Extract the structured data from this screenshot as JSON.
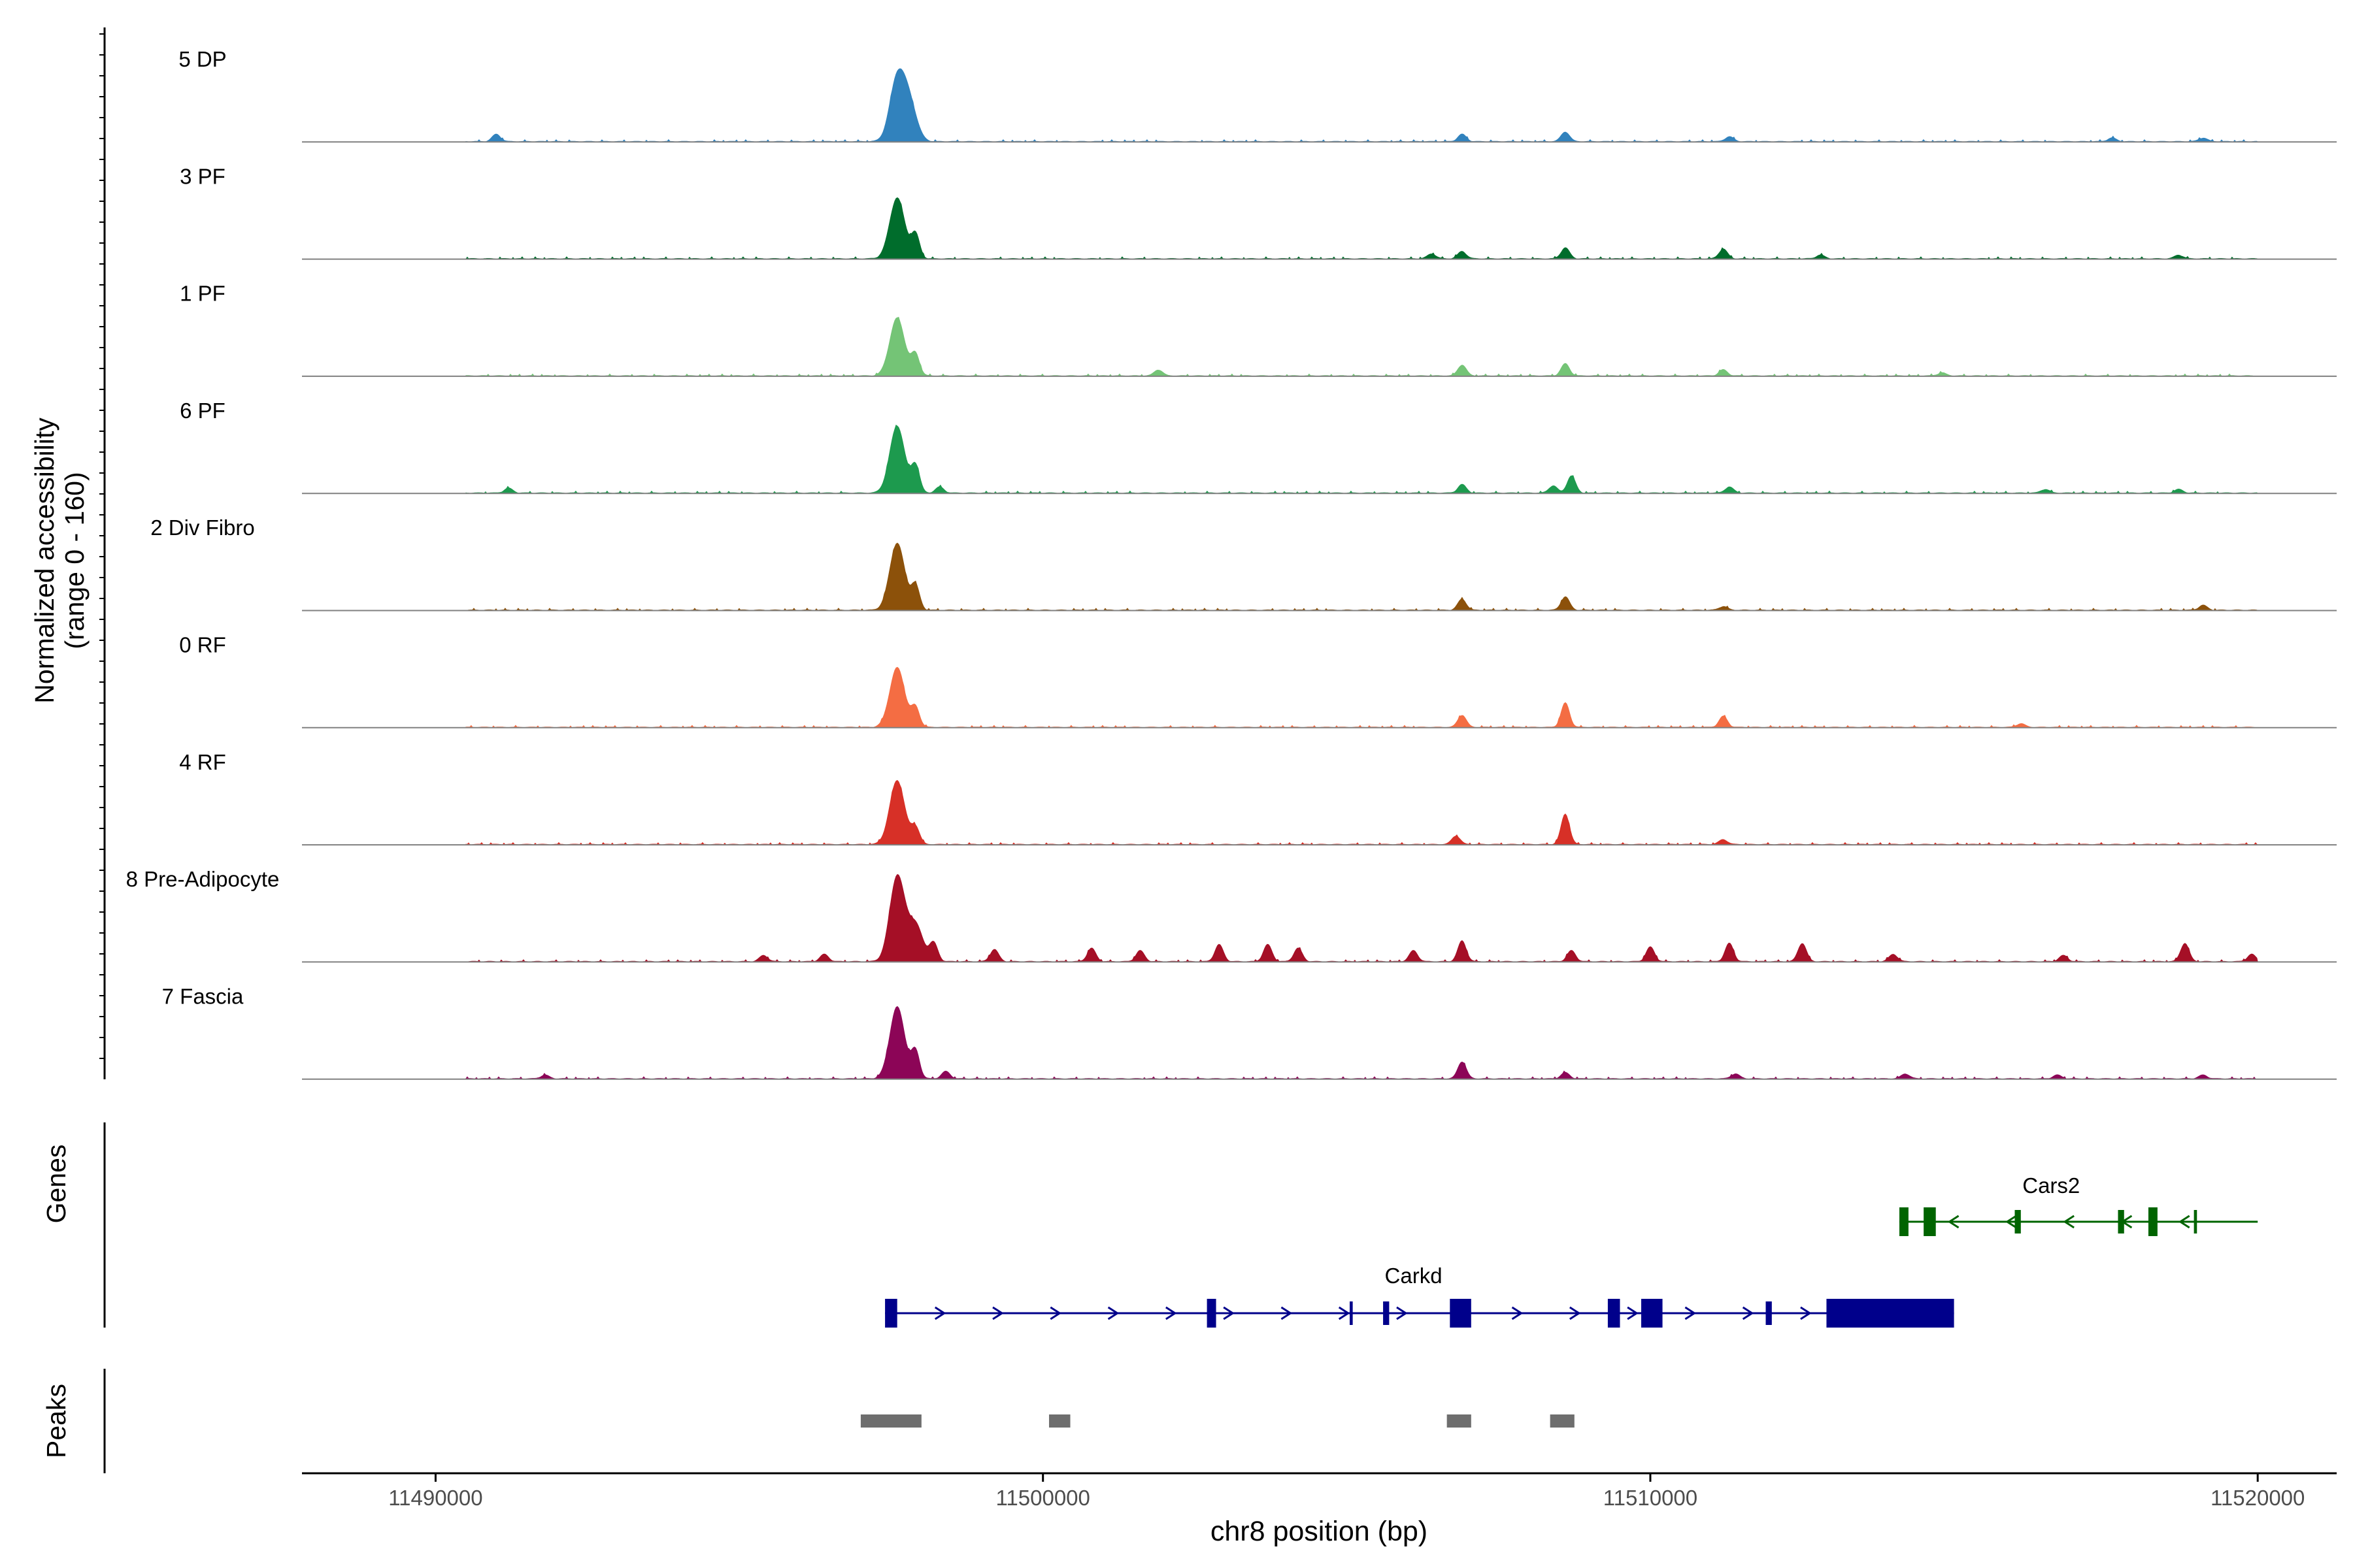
{
  "chart_data": {
    "type": "area",
    "ylabel_line1": "Normalized accessibility",
    "ylabel_line2": "(range 0 - 160)",
    "xlabel": "chr8 position (bp)",
    "xlim": [
      11487800,
      11521300
    ],
    "xticks": [
      11490000,
      11500000,
      11510000,
      11520000
    ],
    "xtick_labels": [
      "11490000",
      "11500000",
      "11510000",
      "11520000"
    ],
    "ylim": [
      0,
      160
    ],
    "tracks": [
      {
        "name": "5 DP",
        "color": "#3182bd",
        "peaks": [
          [
            11491000,
            12
          ],
          [
            11497600,
            100
          ],
          [
            11497800,
            60
          ],
          [
            11506900,
            12
          ],
          [
            11508600,
            16
          ],
          [
            11511300,
            8
          ],
          [
            11517600,
            6
          ],
          [
            11519100,
            6
          ]
        ]
      },
      {
        "name": "3 PF",
        "color": "#006d2c",
        "peaks": [
          [
            11497600,
            100
          ],
          [
            11497900,
            40
          ],
          [
            11506400,
            8
          ],
          [
            11506900,
            12
          ],
          [
            11508600,
            18
          ],
          [
            11511200,
            16
          ],
          [
            11512800,
            6
          ],
          [
            11518700,
            6
          ]
        ]
      },
      {
        "name": "1 PF",
        "color": "#74c476",
        "peaks": [
          [
            11497600,
            95
          ],
          [
            11497900,
            35
          ],
          [
            11501900,
            10
          ],
          [
            11506900,
            18
          ],
          [
            11508600,
            20
          ],
          [
            11511200,
            10
          ],
          [
            11514800,
            5
          ]
        ]
      },
      {
        "name": "6 PF",
        "color": "#1d9a4e",
        "peaks": [
          [
            11491200,
            8
          ],
          [
            11497600,
            110
          ],
          [
            11497900,
            45
          ],
          [
            11498300,
            10
          ],
          [
            11506900,
            14
          ],
          [
            11508400,
            12
          ],
          [
            11508700,
            28
          ],
          [
            11511300,
            10
          ],
          [
            11516500,
            6
          ],
          [
            11518700,
            6
          ]
        ]
      },
      {
        "name": "2 Div Fibro",
        "color": "#8c510a",
        "peaks": [
          [
            11497600,
            110
          ],
          [
            11497900,
            40
          ],
          [
            11506900,
            18
          ],
          [
            11508600,
            22
          ],
          [
            11511200,
            6
          ],
          [
            11519100,
            8
          ]
        ]
      },
      {
        "name": "0 RF",
        "color": "#f46d43",
        "peaks": [
          [
            11497600,
            98
          ],
          [
            11497900,
            32
          ],
          [
            11506900,
            20
          ],
          [
            11508600,
            40
          ],
          [
            11511200,
            18
          ],
          [
            11516100,
            6
          ]
        ]
      },
      {
        "name": "4 RF",
        "color": "#d73027",
        "peaks": [
          [
            11497600,
            105
          ],
          [
            11497900,
            28
          ],
          [
            11506800,
            14
          ],
          [
            11508600,
            50
          ],
          [
            11511200,
            8
          ]
        ]
      },
      {
        "name": "8 Pre-Adipocyte",
        "color": "#a50f26",
        "peaks": [
          [
            11495400,
            10
          ],
          [
            11496400,
            12
          ],
          [
            11497600,
            140
          ],
          [
            11497900,
            60
          ],
          [
            11498200,
            30
          ],
          [
            11499200,
            20
          ],
          [
            11500800,
            22
          ],
          [
            11501600,
            18
          ],
          [
            11502900,
            28
          ],
          [
            11503700,
            28
          ],
          [
            11504200,
            22
          ],
          [
            11506100,
            18
          ],
          [
            11506900,
            34
          ],
          [
            11508700,
            18
          ],
          [
            11510000,
            24
          ],
          [
            11511300,
            30
          ],
          [
            11512500,
            30
          ],
          [
            11514000,
            12
          ],
          [
            11516800,
            10
          ],
          [
            11518800,
            30
          ],
          [
            11519900,
            12
          ]
        ]
      },
      {
        "name": "7 Fascia",
        "color": "#8c0557",
        "peaks": [
          [
            11491800,
            6
          ],
          [
            11497600,
            118
          ],
          [
            11497900,
            45
          ],
          [
            11498400,
            12
          ],
          [
            11506900,
            28
          ],
          [
            11508600,
            10
          ],
          [
            11511400,
            8
          ],
          [
            11514200,
            8
          ],
          [
            11516700,
            6
          ],
          [
            11519100,
            6
          ]
        ]
      }
    ],
    "genes_label": "Genes",
    "genes": [
      {
        "name": "Carkd",
        "strand": "+",
        "color": "#00008b",
        "start": 11497400,
        "end": 11515000,
        "exons": [
          [
            11497400,
            11497600
          ],
          [
            11502700,
            11502850
          ],
          [
            11505050,
            11505100
          ],
          [
            11505600,
            11505700
          ],
          [
            11506700,
            11507050
          ],
          [
            11509300,
            11509500
          ],
          [
            11509850,
            11510200
          ],
          [
            11511900,
            11512000
          ],
          [
            11512900,
            11515000
          ]
        ]
      },
      {
        "name": "Cars2",
        "strand": "-",
        "color": "#006400",
        "start": 11514100,
        "end": 11520000,
        "exons": [
          [
            11514100,
            11514250
          ],
          [
            11514500,
            11514700
          ],
          [
            11516000,
            11516100
          ],
          [
            11517700,
            11517800
          ],
          [
            11518200,
            11518350
          ],
          [
            11518950,
            11519000
          ]
        ]
      }
    ],
    "peaks_label": "Peaks",
    "peak_regions": [
      [
        11497000,
        11498000
      ],
      [
        11500100,
        11500450
      ],
      [
        11506650,
        11507050
      ],
      [
        11508350,
        11508750
      ]
    ]
  }
}
